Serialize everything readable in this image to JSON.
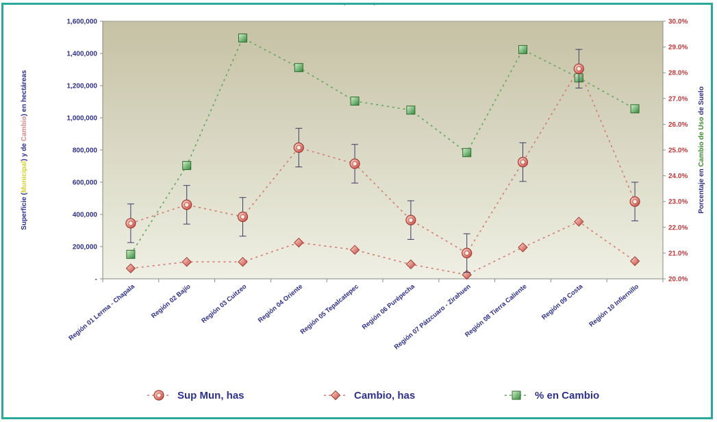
{
  "top_caption": "(... ... ... ...)",
  "chart_data": {
    "type": "line",
    "categories": [
      "Región 01 Lerma - Chapala",
      "Región 02 Bajío",
      "Región 03 Cuitzeo",
      "Región 04 Oriente",
      "Región 05 Tepalcatepec",
      "Región 06 Purépecha",
      "Región 07 Pátzcuaro - Zirahuen",
      "Región 08 Tierra Caliente",
      "Región 09 Costa",
      "Región 10 Infiernillo"
    ],
    "left_axis": {
      "ylim": [
        0,
        1600000
      ],
      "ticks": [
        "-",
        "200,000",
        "400,000",
        "600,000",
        "800,000",
        "1,000,000",
        "1,200,000",
        "1,400,000",
        "1,600,000"
      ],
      "title_parts": [
        {
          "text": "Superficie (",
          "color": "#2d2f8a"
        },
        {
          "text": "Municipal",
          "color": "#d8cf2e"
        },
        {
          "text": ") y de ",
          "color": "#2d2f8a"
        },
        {
          "text": "Cambio",
          "color": "#d98a8a"
        },
        {
          "text": ") en hectáreas",
          "color": "#2d2f8a"
        }
      ]
    },
    "right_axis": {
      "ylim": [
        20.0,
        30.0
      ],
      "ticks": [
        "20.0%",
        "21.0%",
        "22.0%",
        "23.0%",
        "24.0%",
        "25.0%",
        "26.0%",
        "27.0%",
        "28.0%",
        "29.0%",
        "30.0%"
      ],
      "title_parts": [
        {
          "text": "Porcentaje en ",
          "color": "#2d2f8a"
        },
        {
          "text": "Cambio de Uso",
          "color": "#3b8c2e"
        },
        {
          "text": " de Suelo",
          "color": "#2d2f8a"
        }
      ]
    },
    "series": [
      {
        "name": "Sup Mun, has",
        "axis": "left",
        "marker": "circle",
        "color": "#d9816a",
        "values": [
          345000,
          460000,
          385000,
          815000,
          715000,
          365000,
          160000,
          725000,
          1305000,
          480000
        ],
        "error": 120000
      },
      {
        "name": "Cambio, has",
        "axis": "left",
        "marker": "diamond",
        "color": "#d9616a",
        "values": [
          65000,
          105000,
          105000,
          225000,
          180000,
          90000,
          25000,
          195000,
          355000,
          110000
        ]
      },
      {
        "name": "% en Cambio",
        "axis": "right",
        "marker": "square",
        "color": "#4caa4a",
        "values": [
          20.95,
          24.4,
          29.35,
          28.2,
          26.9,
          26.55,
          24.9,
          28.9,
          27.8,
          26.6
        ]
      }
    ],
    "legend": [
      {
        "label": "Sup Mun, has",
        "marker": "circle"
      },
      {
        "label": "Cambio, has",
        "marker": "diamond"
      },
      {
        "label": "% en Cambio",
        "marker": "square"
      }
    ],
    "legend_position": "bottom",
    "grid": false
  }
}
